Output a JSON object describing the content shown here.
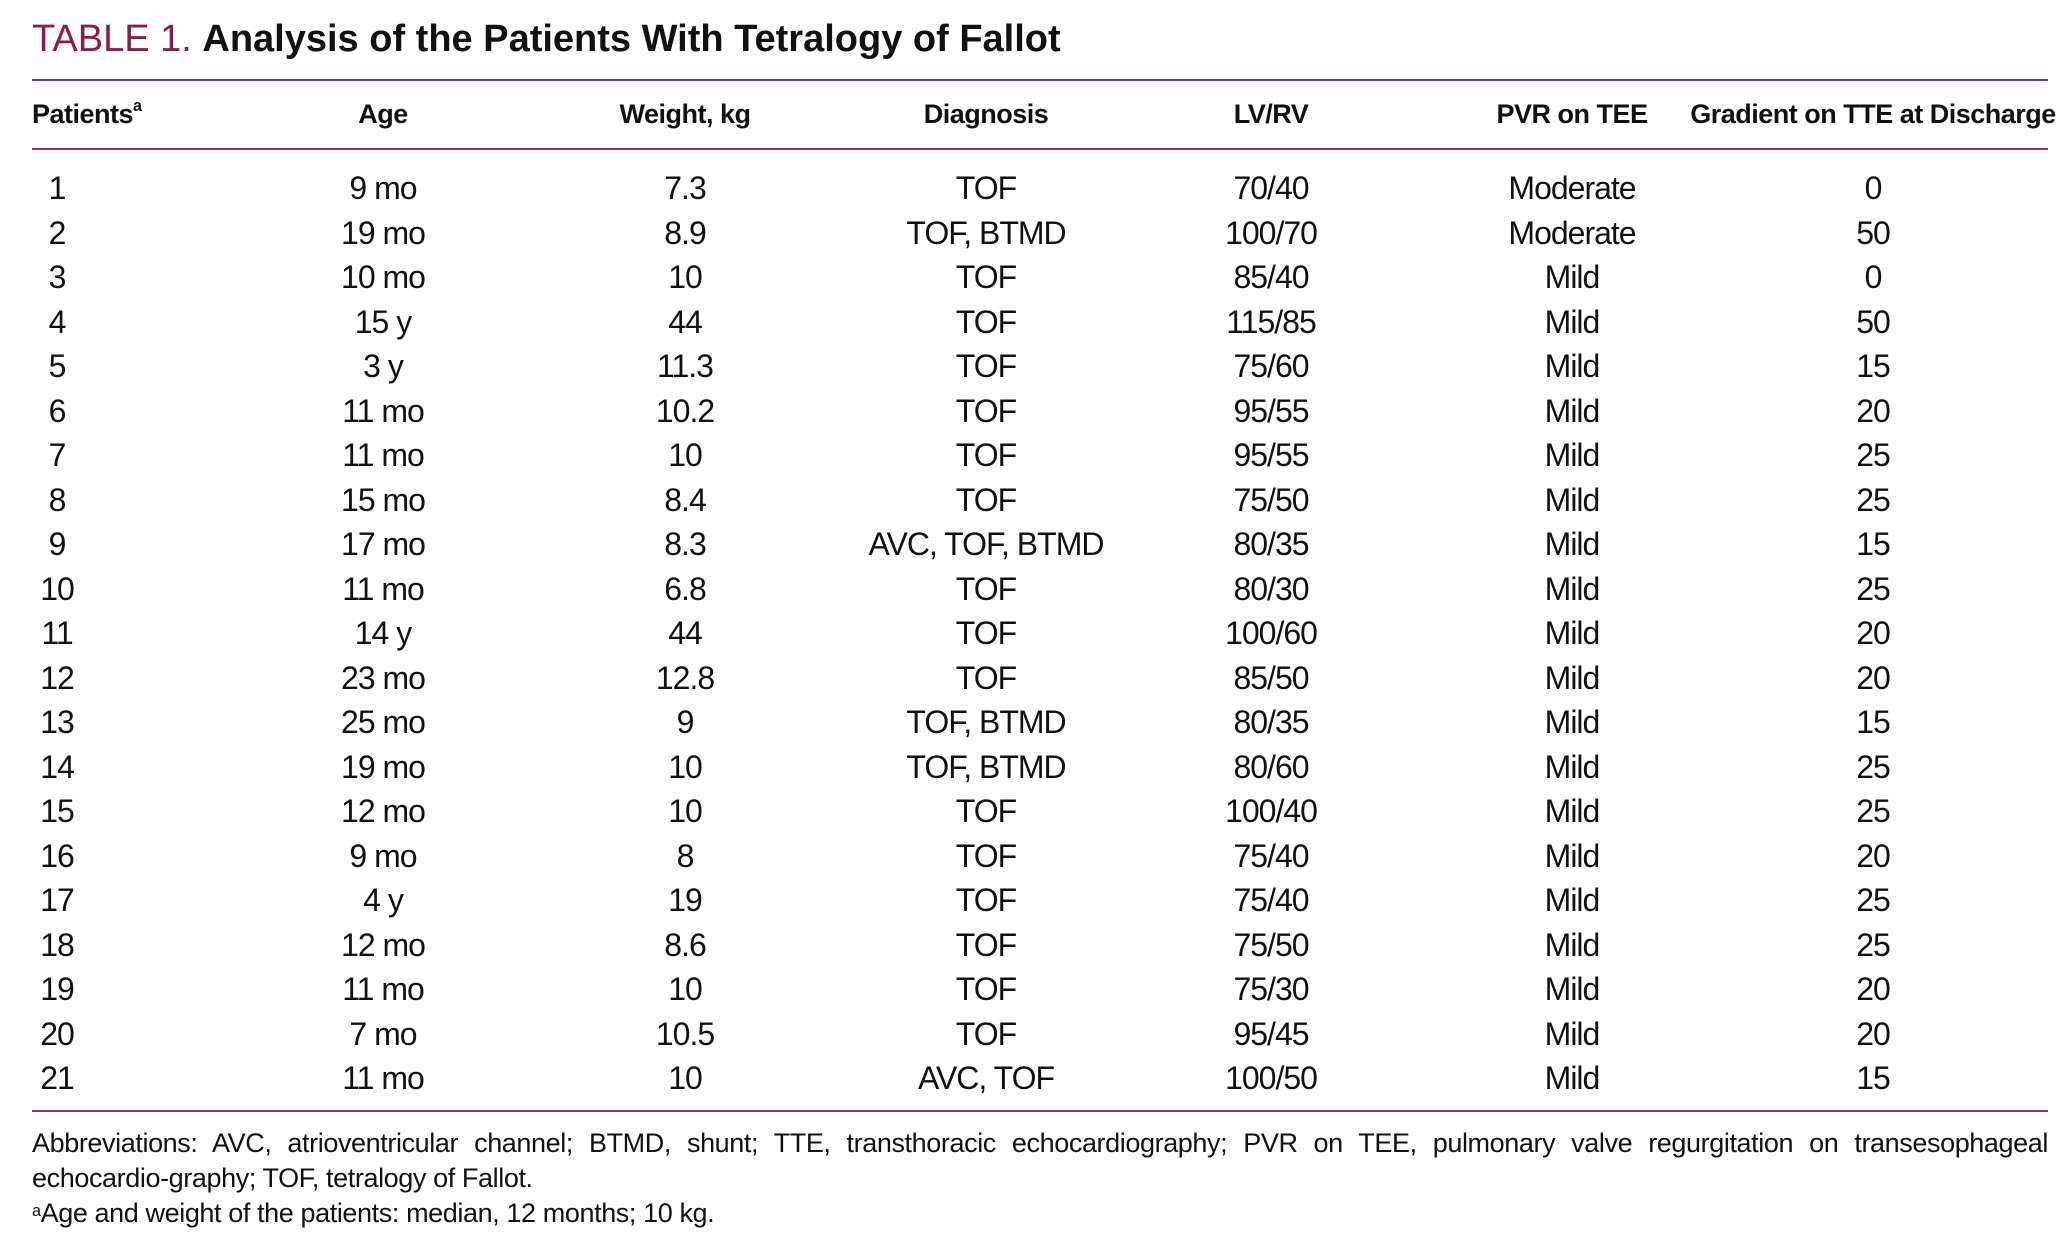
{
  "header": {
    "label": "TABLE 1.",
    "title": "Analysis of the Patients With Tetralogy of Fallot"
  },
  "table": {
    "columns": [
      "Patients",
      "Age",
      "Weight, kg",
      "Diagnosis",
      "LV/RV",
      "PVR on TEE",
      "Gradient on TTE at Discharge"
    ],
    "column_note": "a",
    "rows": [
      [
        1,
        "9 mo",
        7.3,
        "TOF",
        "70/40",
        "Moderate",
        0
      ],
      [
        2,
        "19 mo",
        8.9,
        "TOF, BTMD",
        "100/70",
        "Moderate",
        50
      ],
      [
        3,
        "10 mo",
        10,
        "TOF",
        "85/40",
        "Mild",
        0
      ],
      [
        4,
        "15 y",
        44,
        "TOF",
        "115/85",
        "Mild",
        50
      ],
      [
        5,
        "3 y",
        11.3,
        "TOF",
        "75/60",
        "Mild",
        15
      ],
      [
        6,
        "11 mo",
        10.2,
        "TOF",
        "95/55",
        "Mild",
        20
      ],
      [
        7,
        "11 mo",
        10,
        "TOF",
        "95/55",
        "Mild",
        25
      ],
      [
        8,
        "15 mo",
        8.4,
        "TOF",
        "75/50",
        "Mild",
        25
      ],
      [
        9,
        "17 mo",
        8.3,
        "AVC, TOF, BTMD",
        "80/35",
        "Mild",
        15
      ],
      [
        10,
        "11 mo",
        6.8,
        "TOF",
        "80/30",
        "Mild",
        25
      ],
      [
        11,
        "14 y",
        44,
        "TOF",
        "100/60",
        "Mild",
        20
      ],
      [
        12,
        "23 mo",
        12.8,
        "TOF",
        "85/50",
        "Mild",
        20
      ],
      [
        13,
        "25 mo",
        9,
        "TOF, BTMD",
        "80/35",
        "Mild",
        15
      ],
      [
        14,
        "19 mo",
        10,
        "TOF, BTMD",
        "80/60",
        "Mild",
        25
      ],
      [
        15,
        "12 mo",
        10,
        "TOF",
        "100/40",
        "Mild",
        25
      ],
      [
        16,
        "9 mo",
        8,
        "TOF",
        "75/40",
        "Mild",
        20
      ],
      [
        17,
        "4 y",
        19,
        "TOF",
        "75/40",
        "Mild",
        25
      ],
      [
        18,
        "12 mo",
        8.6,
        "TOF",
        "75/50",
        "Mild",
        25
      ],
      [
        19,
        "11 mo",
        10,
        "TOF",
        "75/30",
        "Mild",
        20
      ],
      [
        20,
        "7 mo",
        10.5,
        "TOF",
        "95/45",
        "Mild",
        20
      ],
      [
        21,
        "11 mo",
        10,
        "AVC, TOF",
        "100/50",
        "Mild",
        15
      ]
    ]
  },
  "footnotes": {
    "abbreviations": "Abbreviations: AVC, atrioventricular channel; BTMD, shunt; TTE, transthoracic echocardiography; PVR on TEE, pulmonary valve regurgitation on transesophageal echocardio-graphy; TOF, tetralogy of Fallot.",
    "note_mark": "a",
    "note": "Age and weight of the patients: median, 12 months; 10 kg."
  }
}
